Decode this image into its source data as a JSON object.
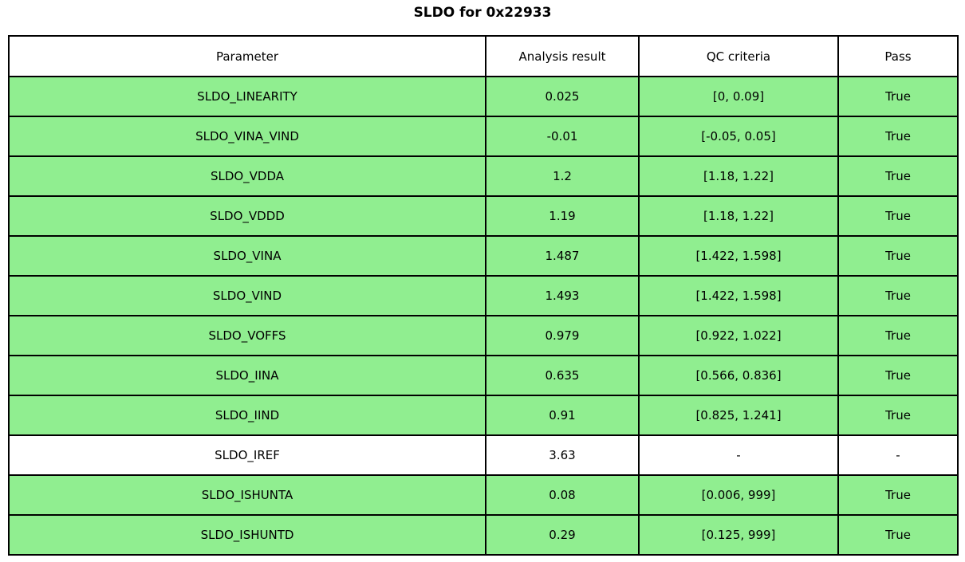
{
  "chart_data": {
    "type": "table",
    "title": "SLDO for 0x22933",
    "columns": [
      "Parameter",
      "Analysis result",
      "QC criteria",
      "Pass"
    ],
    "rows": [
      {
        "parameter": "SLDO_LINEARITY",
        "result": "0.025",
        "criteria": "[0, 0.09]",
        "pass": "True",
        "status": "pass"
      },
      {
        "parameter": "SLDO_VINA_VIND",
        "result": "-0.01",
        "criteria": "[-0.05, 0.05]",
        "pass": "True",
        "status": "pass"
      },
      {
        "parameter": "SLDO_VDDA",
        "result": "1.2",
        "criteria": "[1.18, 1.22]",
        "pass": "True",
        "status": "pass"
      },
      {
        "parameter": "SLDO_VDDD",
        "result": "1.19",
        "criteria": "[1.18, 1.22]",
        "pass": "True",
        "status": "pass"
      },
      {
        "parameter": "SLDO_VINA",
        "result": "1.487",
        "criteria": "[1.422, 1.598]",
        "pass": "True",
        "status": "pass"
      },
      {
        "parameter": "SLDO_VIND",
        "result": "1.493",
        "criteria": "[1.422, 1.598]",
        "pass": "True",
        "status": "pass"
      },
      {
        "parameter": "SLDO_VOFFS",
        "result": "0.979",
        "criteria": "[0.922, 1.022]",
        "pass": "True",
        "status": "pass"
      },
      {
        "parameter": "SLDO_IINA",
        "result": "0.635",
        "criteria": "[0.566, 0.836]",
        "pass": "True",
        "status": "pass"
      },
      {
        "parameter": "SLDO_IIND",
        "result": "0.91",
        "criteria": "[0.825, 1.241]",
        "pass": "True",
        "status": "pass"
      },
      {
        "parameter": "SLDO_IREF",
        "result": "3.63",
        "criteria": "-",
        "pass": "-",
        "status": "neutral"
      },
      {
        "parameter": "SLDO_ISHUNTA",
        "result": "0.08",
        "criteria": "[0.006, 999]",
        "pass": "True",
        "status": "pass"
      },
      {
        "parameter": "SLDO_ISHUNTD",
        "result": "0.29",
        "criteria": "[0.125, 999]",
        "pass": "True",
        "status": "pass"
      }
    ],
    "layout": {
      "grid": true,
      "title_position": "top-center"
    }
  },
  "colors": {
    "pass_row": "#90ee90",
    "neutral_row": "#ffffff",
    "header_row": "#ffffff",
    "border": "#000000",
    "text": "#000000"
  }
}
